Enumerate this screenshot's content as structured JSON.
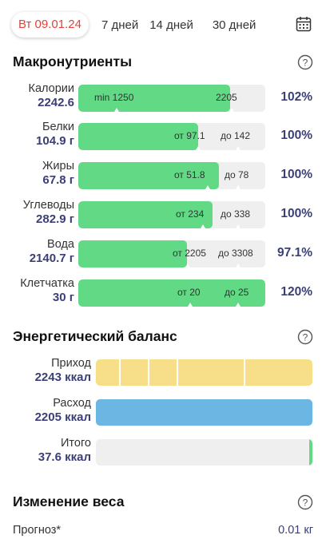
{
  "tabs": {
    "active": "Вт 09.01.24",
    "items": [
      "7 дней",
      "14 дней",
      "30 дней"
    ]
  },
  "macros": {
    "title": "Макронутриенты",
    "rows": [
      {
        "label": "Калории",
        "value": "2242.6",
        "left_text": "min 1250",
        "right_text": "2205",
        "percent": "102%",
        "fill_fraction": 1.0
      },
      {
        "label": "Белки",
        "value": "104.9 г",
        "left_text": "от 97.1",
        "right_text": "до 142",
        "percent": "100%",
        "fill_fraction": 0.64
      },
      {
        "label": "Жиры",
        "value": "67.8 г",
        "left_text": "от 51.8",
        "right_text": "до 78",
        "percent": "100%",
        "fill_fraction": 0.75
      },
      {
        "label": "Углеводы",
        "value": "282.9 г",
        "left_text": "от 234",
        "right_text": "до 338",
        "percent": "100%",
        "fill_fraction": 0.72
      },
      {
        "label": "Вода",
        "value": "2140.7 г",
        "left_text": "от 2205",
        "right_text": "до 3308",
        "percent": "97.1%",
        "fill_fraction": 0.58
      },
      {
        "label": "Клетчатка",
        "value": "30 г",
        "left_text": "от 20",
        "right_text": "до 25",
        "percent": "120%",
        "fill_fraction": 1.0
      }
    ]
  },
  "energy": {
    "title": "Энергетический баланс",
    "rows": [
      {
        "label": "Приход",
        "value": "2243 ккал",
        "color": "#f7df8a"
      },
      {
        "label": "Расход",
        "value": "2205 ккал",
        "color": "#6cb6e4"
      },
      {
        "label": "Итого",
        "value": "37.6 ккал",
        "color": "#61d985"
      }
    ]
  },
  "weight": {
    "title": "Изменение веса",
    "forecast_label": "Прогноз*",
    "forecast_value": "0.01 кг"
  },
  "colors": {
    "accent": "#e3433a",
    "value": "#3a3f77",
    "green": "#61d985"
  }
}
